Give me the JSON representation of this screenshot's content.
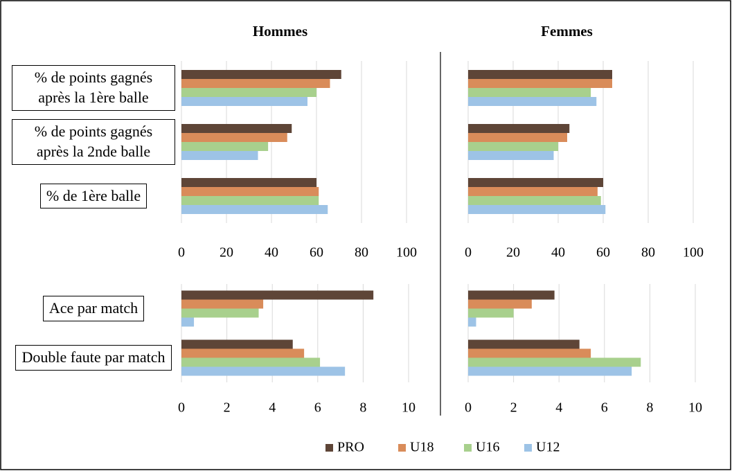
{
  "legend": [
    {
      "name": "PRO",
      "color": "#5e4537"
    },
    {
      "name": "U18",
      "color": "#d98c5a"
    },
    {
      "name": "U16",
      "color": "#a8d08d"
    },
    {
      "name": "U12",
      "color": "#9dc3e6"
    }
  ],
  "chart_data": [
    {
      "type": "hbar",
      "title": "Hommes",
      "categories": [
        "% de points gagnés après la 1ère balle",
        "% de points gagnés après la 2nde balle",
        "% de 1ère balle"
      ],
      "series": [
        {
          "values": [
            71,
            49,
            60
          ]
        },
        {
          "values": [
            66,
            47,
            61
          ]
        },
        {
          "values": [
            60,
            38.5,
            61
          ]
        },
        {
          "values": [
            56,
            34,
            65
          ]
        }
      ],
      "xlim": [
        0,
        100
      ],
      "xticks": [
        0,
        20,
        40,
        60,
        80,
        100
      ],
      "grid": true
    },
    {
      "type": "hbar",
      "title": "Femmes",
      "series": [
        {
          "values": [
            64,
            45,
            60
          ]
        },
        {
          "values": [
            64,
            44,
            57.5
          ]
        },
        {
          "values": [
            54.5,
            40,
            59
          ]
        },
        {
          "values": [
            57,
            38,
            61
          ]
        }
      ],
      "xlim": [
        0,
        100
      ],
      "xticks": [
        0,
        20,
        40,
        60,
        80,
        100
      ],
      "grid": true
    },
    {
      "type": "hbar",
      "categories": [
        "Ace par match",
        "Double faute par match"
      ],
      "series": [
        {
          "values": [
            8.45,
            4.9
          ]
        },
        {
          "values": [
            3.6,
            5.4
          ]
        },
        {
          "values": [
            3.4,
            6.1
          ]
        },
        {
          "values": [
            0.55,
            7.2
          ]
        }
      ],
      "xlim": [
        0,
        10
      ],
      "xticks": [
        0,
        2,
        4,
        6,
        8,
        10
      ],
      "grid": true
    },
    {
      "type": "hbar",
      "series": [
        {
          "values": [
            3.8,
            4.9
          ]
        },
        {
          "values": [
            2.8,
            5.4
          ]
        },
        {
          "values": [
            2.0,
            7.6
          ]
        },
        {
          "values": [
            0.35,
            7.2
          ]
        }
      ],
      "xlim": [
        0,
        10
      ],
      "xticks": [
        0,
        2,
        4,
        6,
        8,
        10
      ],
      "grid": true
    }
  ]
}
